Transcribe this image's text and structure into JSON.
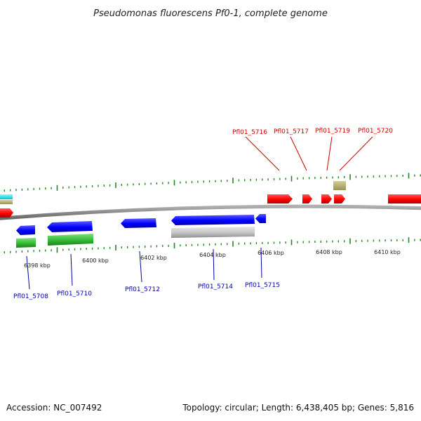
{
  "title": "Pseudomonas fluorescens Pf0-1, complete genome",
  "footer": {
    "accession": "Accession: NC_007492",
    "summary": "Topology: circular; Length: 6,438,405 bp; Genes: 5,816"
  },
  "scale_labels": [
    "6398 kbp",
    "6400 kbp",
    "6402 kbp",
    "6404 kbp",
    "6406 kbp",
    "6408 kbp",
    "6410 kbp"
  ],
  "top_gene_labels": [
    "Pfl01_5716",
    "Pfl01_5717",
    "Pfl01_5719",
    "Pfl01_5720"
  ],
  "bottom_gene_labels": [
    "Pfl01_5708",
    "Pfl01_5710",
    "Pfl01_5712",
    "Pfl01_5714",
    "Pfl01_5715"
  ],
  "colors": {
    "forward_gene": "#ff0000",
    "reverse_gene": "#0000ff",
    "rna_feature": "#33bb33",
    "pseudo_feature": "#c8c8c8",
    "misc_feature": "#b5ad6e",
    "other_feature": "#00e5e5",
    "backbone": "#888888",
    "tick": "#228822",
    "top_label": "#cc0000",
    "bottom_label": "#0000aa"
  }
}
